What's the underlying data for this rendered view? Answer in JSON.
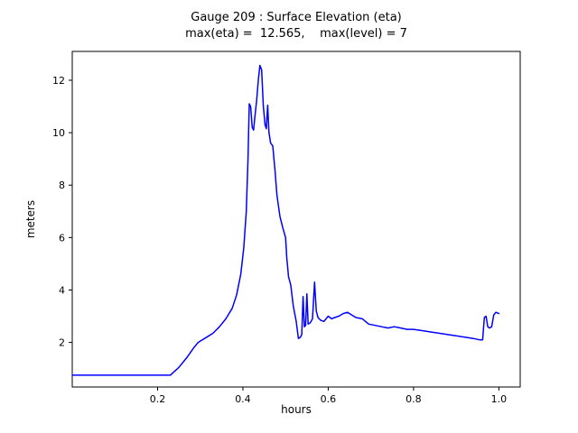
{
  "chart_data": {
    "type": "line",
    "title": "Gauge 209 : Surface Elevation (eta)",
    "subtitle": "max(eta) =  12.565,    max(level) = 7",
    "xlabel": "hours",
    "ylabel": "meters",
    "max_eta": 12.565,
    "max_level": 7,
    "xlim": [
      0.0,
      1.05
    ],
    "ylim": [
      0.3,
      13.1
    ],
    "xticks": [
      0.2,
      0.4,
      0.6,
      0.8,
      1.0
    ],
    "xtick_labels": [
      "0.2",
      "0.4",
      "0.6",
      "0.8",
      "1.0"
    ],
    "yticks": [
      2,
      4,
      6,
      8,
      10,
      12
    ],
    "ytick_labels": [
      "2",
      "4",
      "6",
      "8",
      "10",
      "12"
    ],
    "line_color": "#0000ff",
    "background_color": "#ffffff",
    "frame_color": "#000000",
    "grid": false,
    "legend": "none",
    "series": [
      {
        "name": "eta",
        "points": [
          [
            0.0,
            0.75
          ],
          [
            0.05,
            0.75
          ],
          [
            0.1,
            0.75
          ],
          [
            0.15,
            0.75
          ],
          [
            0.2,
            0.75
          ],
          [
            0.23,
            0.75
          ],
          [
            0.25,
            1.05
          ],
          [
            0.27,
            1.45
          ],
          [
            0.285,
            1.8
          ],
          [
            0.295,
            2.0
          ],
          [
            0.3,
            2.05
          ],
          [
            0.315,
            2.2
          ],
          [
            0.33,
            2.35
          ],
          [
            0.345,
            2.6
          ],
          [
            0.36,
            2.9
          ],
          [
            0.375,
            3.3
          ],
          [
            0.385,
            3.8
          ],
          [
            0.395,
            4.6
          ],
          [
            0.402,
            5.6
          ],
          [
            0.408,
            7.0
          ],
          [
            0.412,
            9.0
          ],
          [
            0.415,
            11.1
          ],
          [
            0.418,
            11.0
          ],
          [
            0.422,
            10.2
          ],
          [
            0.425,
            10.1
          ],
          [
            0.428,
            10.6
          ],
          [
            0.432,
            11.2
          ],
          [
            0.436,
            12.0
          ],
          [
            0.44,
            12.565
          ],
          [
            0.444,
            12.4
          ],
          [
            0.448,
            11.0
          ],
          [
            0.452,
            10.3
          ],
          [
            0.455,
            10.15
          ],
          [
            0.458,
            11.05
          ],
          [
            0.461,
            10.0
          ],
          [
            0.465,
            9.6
          ],
          [
            0.47,
            9.5
          ],
          [
            0.475,
            8.6
          ],
          [
            0.48,
            7.6
          ],
          [
            0.487,
            6.8
          ],
          [
            0.493,
            6.4
          ],
          [
            0.5,
            6.0
          ],
          [
            0.503,
            5.2
          ],
          [
            0.507,
            4.5
          ],
          [
            0.512,
            4.2
          ],
          [
            0.518,
            3.4
          ],
          [
            0.525,
            2.8
          ],
          [
            0.53,
            2.15
          ],
          [
            0.535,
            2.2
          ],
          [
            0.538,
            2.3
          ],
          [
            0.541,
            3.75
          ],
          [
            0.544,
            2.6
          ],
          [
            0.547,
            2.65
          ],
          [
            0.55,
            3.85
          ],
          [
            0.553,
            2.7
          ],
          [
            0.558,
            2.75
          ],
          [
            0.563,
            2.9
          ],
          [
            0.568,
            4.3
          ],
          [
            0.572,
            3.2
          ],
          [
            0.576,
            2.95
          ],
          [
            0.582,
            2.85
          ],
          [
            0.59,
            2.8
          ],
          [
            0.6,
            3.0
          ],
          [
            0.608,
            2.9
          ],
          [
            0.615,
            2.95
          ],
          [
            0.625,
            3.0
          ],
          [
            0.635,
            3.1
          ],
          [
            0.645,
            3.15
          ],
          [
            0.655,
            3.05
          ],
          [
            0.665,
            2.95
          ],
          [
            0.68,
            2.9
          ],
          [
            0.695,
            2.7
          ],
          [
            0.71,
            2.65
          ],
          [
            0.725,
            2.6
          ],
          [
            0.74,
            2.55
          ],
          [
            0.755,
            2.6
          ],
          [
            0.77,
            2.55
          ],
          [
            0.785,
            2.5
          ],
          [
            0.8,
            2.5
          ],
          [
            0.82,
            2.45
          ],
          [
            0.84,
            2.4
          ],
          [
            0.86,
            2.35
          ],
          [
            0.88,
            2.3
          ],
          [
            0.9,
            2.25
          ],
          [
            0.92,
            2.2
          ],
          [
            0.94,
            2.15
          ],
          [
            0.955,
            2.1
          ],
          [
            0.962,
            2.1
          ],
          [
            0.966,
            2.95
          ],
          [
            0.97,
            3.0
          ],
          [
            0.974,
            2.6
          ],
          [
            0.978,
            2.55
          ],
          [
            0.983,
            2.6
          ],
          [
            0.988,
            3.05
          ],
          [
            0.993,
            3.15
          ],
          [
            1.0,
            3.1
          ]
        ]
      }
    ]
  }
}
